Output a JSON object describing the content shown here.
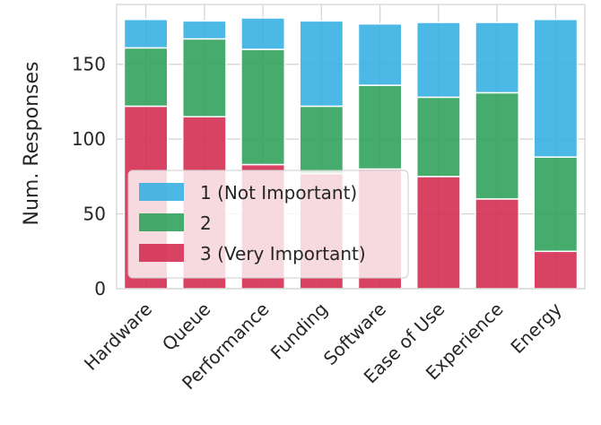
{
  "chart_data": {
    "type": "bar",
    "stacked": true,
    "title": "",
    "xlabel": "",
    "ylabel": "Num. Responses",
    "ylim": [
      0,
      190
    ],
    "yticks": [
      0,
      50,
      100,
      150
    ],
    "grid": true,
    "legend_position": "lower-left",
    "categories": [
      "Hardware",
      "Queue",
      "Performance",
      "Funding",
      "Software",
      "Ease of Use",
      "Experience",
      "Energy"
    ],
    "series": [
      {
        "name": "3 (Very Important)",
        "color": "#d3294f",
        "values": [
          122,
          115,
          83,
          77,
          80,
          75,
          60,
          25
        ]
      },
      {
        "name": "2",
        "color": "#2ca05a",
        "values": [
          39,
          52,
          77,
          45,
          56,
          53,
          71,
          63
        ]
      },
      {
        "name": "1 (Not Important)",
        "color": "#33aee2",
        "values": [
          19,
          12,
          21,
          57,
          41,
          50,
          47,
          92
        ]
      }
    ],
    "legend_order": [
      "1 (Not Important)",
      "2",
      "3 (Very Important)"
    ]
  }
}
